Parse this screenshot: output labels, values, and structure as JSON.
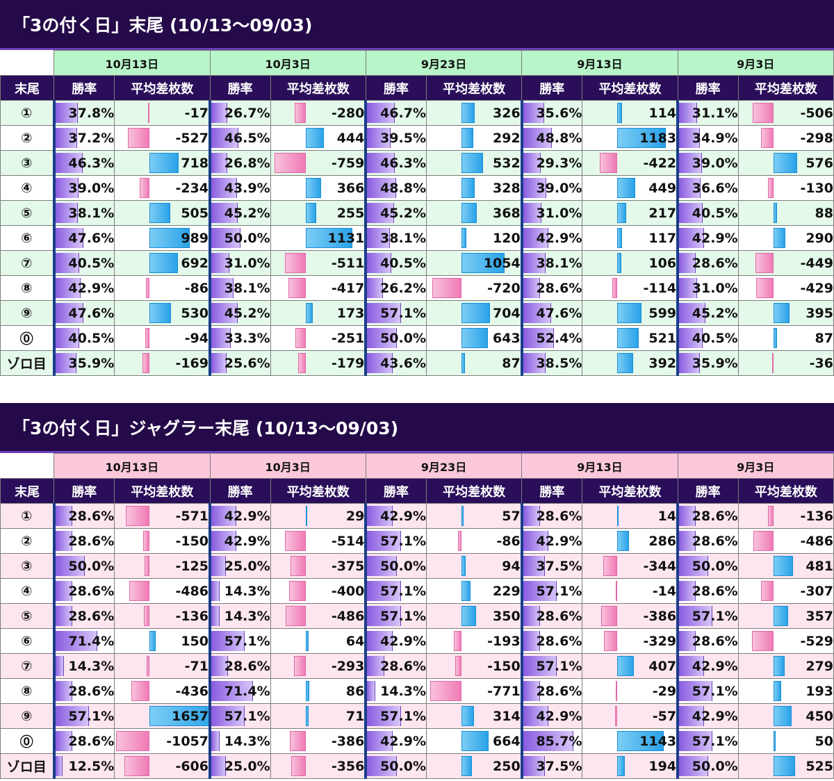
{
  "tables": [
    {
      "title": "「3の付く日」末尾 (10/13〜09/03)",
      "dates": [
        "10月13日",
        "10月3日",
        "9月23日",
        "9月13日",
        "9月3日"
      ],
      "header": {
        "label": "末尾",
        "rate": "勝率",
        "avg": "平均差枚数"
      },
      "rows": [
        {
          "label": "①",
          "cells": [
            [
              "37.8%",
              "-17"
            ],
            [
              "26.7%",
              "-280"
            ],
            [
              "46.7%",
              "326"
            ],
            [
              "35.6%",
              "114"
            ],
            [
              "31.1%",
              "-506"
            ]
          ]
        },
        {
          "label": "②",
          "cells": [
            [
              "37.2%",
              "-527"
            ],
            [
              "46.5%",
              "444"
            ],
            [
              "39.5%",
              "292"
            ],
            [
              "48.8%",
              "1183"
            ],
            [
              "34.9%",
              "-298"
            ]
          ]
        },
        {
          "label": "③",
          "cells": [
            [
              "46.3%",
              "718"
            ],
            [
              "26.8%",
              "-759"
            ],
            [
              "46.3%",
              "532"
            ],
            [
              "29.3%",
              "-422"
            ],
            [
              "39.0%",
              "576"
            ]
          ]
        },
        {
          "label": "④",
          "cells": [
            [
              "39.0%",
              "-234"
            ],
            [
              "43.9%",
              "366"
            ],
            [
              "48.8%",
              "328"
            ],
            [
              "39.0%",
              "449"
            ],
            [
              "36.6%",
              "-130"
            ]
          ]
        },
        {
          "label": "⑤",
          "cells": [
            [
              "38.1%",
              "505"
            ],
            [
              "45.2%",
              "255"
            ],
            [
              "45.2%",
              "368"
            ],
            [
              "31.0%",
              "217"
            ],
            [
              "40.5%",
              "88"
            ]
          ]
        },
        {
          "label": "⑥",
          "cells": [
            [
              "47.6%",
              "989"
            ],
            [
              "50.0%",
              "1131"
            ],
            [
              "38.1%",
              "120"
            ],
            [
              "42.9%",
              "117"
            ],
            [
              "42.9%",
              "290"
            ]
          ]
        },
        {
          "label": "⑦",
          "cells": [
            [
              "40.5%",
              "692"
            ],
            [
              "31.0%",
              "-511"
            ],
            [
              "40.5%",
              "1054"
            ],
            [
              "38.1%",
              "106"
            ],
            [
              "28.6%",
              "-449"
            ]
          ]
        },
        {
          "label": "⑧",
          "cells": [
            [
              "42.9%",
              "-86"
            ],
            [
              "38.1%",
              "-417"
            ],
            [
              "26.2%",
              "-720"
            ],
            [
              "28.6%",
              "-114"
            ],
            [
              "31.0%",
              "-429"
            ]
          ]
        },
        {
          "label": "⑨",
          "cells": [
            [
              "47.6%",
              "530"
            ],
            [
              "45.2%",
              "173"
            ],
            [
              "57.1%",
              "704"
            ],
            [
              "47.6%",
              "599"
            ],
            [
              "45.2%",
              "395"
            ]
          ]
        },
        {
          "label": "⓪",
          "cells": [
            [
              "40.5%",
              "-94"
            ],
            [
              "33.3%",
              "-251"
            ],
            [
              "50.0%",
              "643"
            ],
            [
              "52.4%",
              "521"
            ],
            [
              "40.5%",
              "87"
            ]
          ]
        },
        {
          "label": "ゾロ目",
          "cells": [
            [
              "35.9%",
              "-169"
            ],
            [
              "25.6%",
              "-179"
            ],
            [
              "43.6%",
              "87"
            ],
            [
              "38.5%",
              "392"
            ],
            [
              "35.9%",
              "-36"
            ]
          ]
        }
      ]
    },
    {
      "title": "「3の付く日」ジャグラー末尾 (10/13〜09/03)",
      "dates": [
        "10月13日",
        "10月3日",
        "9月23日",
        "9月13日",
        "9月3日"
      ],
      "header": {
        "label": "末尾",
        "rate": "勝率",
        "avg": "平均差枚数"
      },
      "rows": [
        {
          "label": "①",
          "cells": [
            [
              "28.6%",
              "-571"
            ],
            [
              "42.9%",
              "29"
            ],
            [
              "42.9%",
              "57"
            ],
            [
              "28.6%",
              "14"
            ],
            [
              "28.6%",
              "-136"
            ]
          ]
        },
        {
          "label": "②",
          "cells": [
            [
              "28.6%",
              "-150"
            ],
            [
              "42.9%",
              "-514"
            ],
            [
              "57.1%",
              "-86"
            ],
            [
              "42.9%",
              "286"
            ],
            [
              "28.6%",
              "-486"
            ]
          ]
        },
        {
          "label": "③",
          "cells": [
            [
              "50.0%",
              "-125"
            ],
            [
              "25.0%",
              "-375"
            ],
            [
              "50.0%",
              "94"
            ],
            [
              "37.5%",
              "-344"
            ],
            [
              "50.0%",
              "481"
            ]
          ]
        },
        {
          "label": "④",
          "cells": [
            [
              "28.6%",
              "-486"
            ],
            [
              "14.3%",
              "-400"
            ],
            [
              "57.1%",
              "229"
            ],
            [
              "57.1%",
              "-14"
            ],
            [
              "28.6%",
              "-307"
            ]
          ]
        },
        {
          "label": "⑤",
          "cells": [
            [
              "28.6%",
              "-136"
            ],
            [
              "14.3%",
              "-486"
            ],
            [
              "57.1%",
              "350"
            ],
            [
              "28.6%",
              "-386"
            ],
            [
              "57.1%",
              "357"
            ]
          ]
        },
        {
          "label": "⑥",
          "cells": [
            [
              "71.4%",
              "150"
            ],
            [
              "57.1%",
              "64"
            ],
            [
              "42.9%",
              "-193"
            ],
            [
              "28.6%",
              "-329"
            ],
            [
              "28.6%",
              "-529"
            ]
          ]
        },
        {
          "label": "⑦",
          "cells": [
            [
              "14.3%",
              "-71"
            ],
            [
              "28.6%",
              "-293"
            ],
            [
              "28.6%",
              "-150"
            ],
            [
              "57.1%",
              "407"
            ],
            [
              "42.9%",
              "279"
            ]
          ]
        },
        {
          "label": "⑧",
          "cells": [
            [
              "28.6%",
              "-436"
            ],
            [
              "71.4%",
              "86"
            ],
            [
              "14.3%",
              "-771"
            ],
            [
              "28.6%",
              "-29"
            ],
            [
              "57.1%",
              "193"
            ]
          ]
        },
        {
          "label": "⑨",
          "cells": [
            [
              "57.1%",
              "1657"
            ],
            [
              "57.1%",
              "71"
            ],
            [
              "57.1%",
              "314"
            ],
            [
              "42.9%",
              "-57"
            ],
            [
              "42.9%",
              "450"
            ]
          ]
        },
        {
          "label": "⓪",
          "cells": [
            [
              "28.6%",
              "-1057"
            ],
            [
              "14.3%",
              "-386"
            ],
            [
              "42.9%",
              "664"
            ],
            [
              "85.7%",
              "1143"
            ],
            [
              "57.1%",
              "50"
            ]
          ]
        },
        {
          "label": "ゾロ目",
          "cells": [
            [
              "12.5%",
              "-606"
            ],
            [
              "25.0%",
              "-356"
            ],
            [
              "50.0%",
              "250"
            ],
            [
              "37.5%",
              "194"
            ],
            [
              "50.0%",
              "525"
            ]
          ]
        }
      ]
    }
  ],
  "colors": {
    "title_bg": "#240a48",
    "header_bg": "#2a0e5a",
    "rate_bar": "#8a5ce0",
    "positive_bar": "#2aa2e8",
    "negative_bar": "#f07ab6",
    "table1_date_bg": "#b8f5c8",
    "table2_date_bg": "#fbc8dc"
  }
}
